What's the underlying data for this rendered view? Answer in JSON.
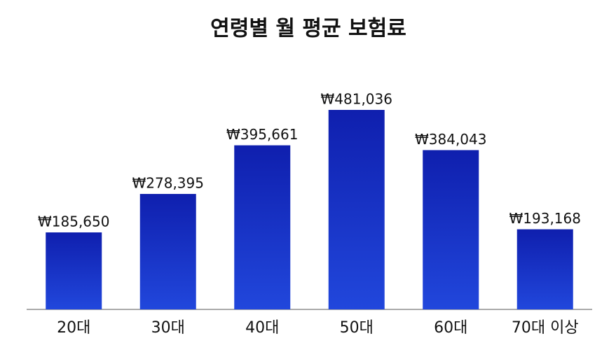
{
  "chart_data": {
    "type": "bar",
    "title": "연령별 월 평균 보험료",
    "categories": [
      "20대",
      "30대",
      "40대",
      "50대",
      "60대",
      "70대 이상"
    ],
    "values": [
      185650,
      278395,
      395661,
      481036,
      384043,
      193168
    ],
    "value_labels": [
      "₩185,650",
      "₩278,395",
      "₩395,661",
      "₩481,036",
      "₩384,043",
      "₩193,168"
    ],
    "color": "#0f1fae"
  }
}
